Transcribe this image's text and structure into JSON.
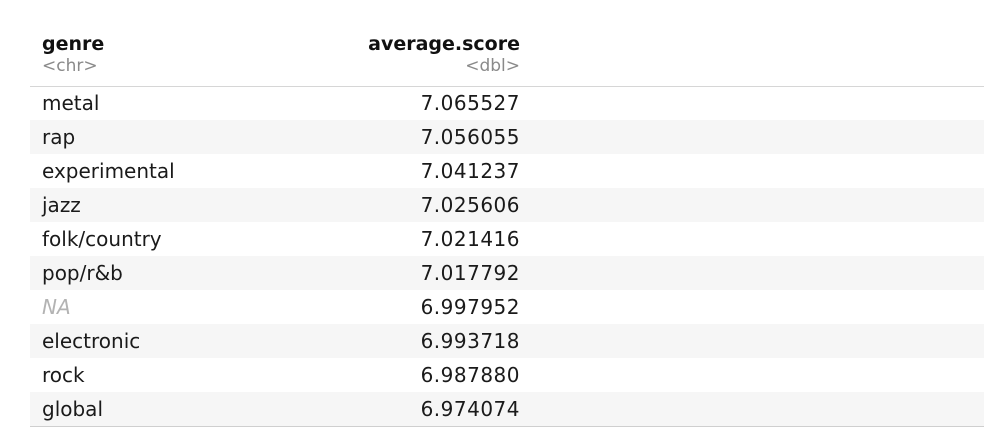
{
  "table": {
    "columns": [
      {
        "name": "genre",
        "type": "<chr>"
      },
      {
        "name": "average.score",
        "type": "<dbl>"
      }
    ],
    "rows": [
      {
        "genre": "metal",
        "score": "7.065527"
      },
      {
        "genre": "rap",
        "score": "7.056055"
      },
      {
        "genre": "experimental",
        "score": "7.041237"
      },
      {
        "genre": "jazz",
        "score": "7.025606"
      },
      {
        "genre": "folk/country",
        "score": "7.021416"
      },
      {
        "genre": "pop/r&b",
        "score": "7.017792"
      },
      {
        "genre": "NA",
        "score": "6.997952"
      },
      {
        "genre": "electronic",
        "score": "6.993718"
      },
      {
        "genre": "rock",
        "score": "6.987880"
      },
      {
        "genre": "global",
        "score": "6.974074"
      }
    ]
  }
}
